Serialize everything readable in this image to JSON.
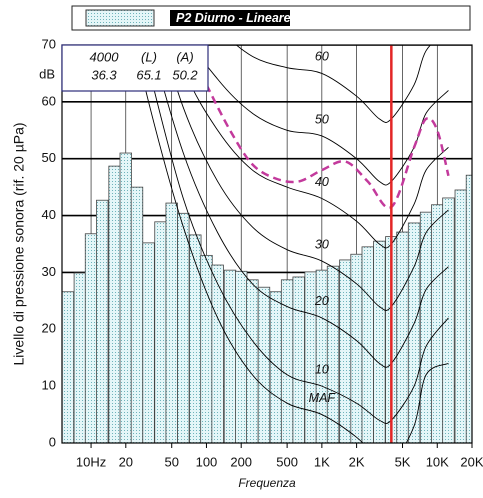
{
  "chart_data": {
    "type": "bar",
    "legend": "top",
    "y_label": "Livello di pressione sonora (rif. 20 µPa)",
    "x_label": "Frequenza",
    "y_unit": "dB",
    "xscale": "log",
    "xlim": [
      5.6,
      20000
    ],
    "ylim": [
      0,
      70
    ],
    "yticks": [
      0,
      10,
      20,
      30,
      40,
      50,
      60,
      70
    ],
    "xticks": [
      {
        "value": 10,
        "label": "10Hz"
      },
      20,
      50,
      100,
      200,
      500,
      {
        "value": 1000,
        "label": "1K"
      },
      {
        "value": 2000,
        "label": "2K"
      },
      {
        "value": 5000,
        "label": "5K"
      },
      {
        "value": 10000,
        "label": "10K"
      },
      {
        "value": 20000,
        "label": "20K"
      }
    ],
    "grid": true,
    "x": [
      6.3,
      8,
      10,
      12.5,
      16,
      20,
      25,
      31.5,
      40,
      50,
      63,
      80,
      100,
      125,
      160,
      200,
      250,
      315,
      400,
      500,
      630,
      800,
      1000,
      1250,
      1600,
      2000,
      2500,
      3150,
      4000,
      5000,
      6300,
      8000,
      10000,
      12500,
      16000,
      20000
    ],
    "series": [
      {
        "name": "P2 Diurno - Lineare",
        "color": "#dff4f6",
        "values": [
          26.6,
          29.9,
          36.8,
          42.7,
          48.7,
          51,
          45,
          35.2,
          38.9,
          42.2,
          40.4,
          36.6,
          33,
          31.3,
          30.4,
          30.2,
          28.7,
          27.4,
          26.6,
          28.7,
          29.2,
          30.1,
          30.4,
          31.1,
          32.2,
          33.2,
          34.5,
          35.5,
          36.3,
          37.1,
          38.7,
          40.6,
          41.9,
          43.1,
          44.5,
          47.1
        ]
      }
    ],
    "contours": {
      "x": [
        20,
        31.5,
        63,
        125,
        250,
        500,
        1000,
        2000,
        3150,
        4000,
        6300,
        8000,
        12500
      ],
      "lines": [
        {
          "name": "MAF",
          "values": [
            78,
            60,
            38,
            22,
            12,
            7,
            5,
            1,
            -3,
            -4,
            3,
            12,
            14
          ]
        },
        {
          "name": "10",
          "values": [
            83,
            66,
            43,
            28,
            18,
            12,
            10,
            7,
            4,
            4,
            10,
            17,
            22
          ]
        },
        {
          "name": "20",
          "values": [
            89,
            72,
            51,
            37,
            28,
            24,
            22,
            18,
            14,
            14,
            21,
            27,
            31
          ]
        },
        {
          "name": "30",
          "values": [
            94,
            79,
            59,
            46,
            38,
            34,
            32,
            28,
            24,
            24,
            31,
            37,
            41
          ]
        },
        {
          "name": "40",
          "values": [
            99,
            85,
            66,
            55,
            48,
            45,
            43,
            39,
            35,
            35,
            42,
            48,
            52
          ]
        },
        {
          "name": "50",
          "values": [
            104,
            90,
            73,
            64,
            58,
            55,
            54,
            50,
            46,
            46,
            52,
            58,
            62
          ]
        },
        {
          "name": "60",
          "values": [
            109,
            96,
            80,
            73,
            68,
            66,
            65,
            61,
            57,
            57,
            63,
            69,
            73
          ]
        }
      ],
      "color": "#000000"
    },
    "overlay": {
      "color": "#c33a9c",
      "x": [
        100,
        160,
        250,
        400,
        630,
        1000,
        1600,
        2500,
        4000,
        6300,
        8000,
        10000,
        12500
      ],
      "values": [
        63,
        55,
        49,
        46.5,
        46,
        48,
        49.5,
        46,
        41.5,
        52,
        57,
        55,
        47
      ]
    },
    "cursor": {
      "frequency": 4000,
      "color": "#e32626",
      "headers": [
        "(L)",
        "(A)"
      ],
      "level": 36.3,
      "L": 65.1,
      "A": 50.2
    }
  }
}
